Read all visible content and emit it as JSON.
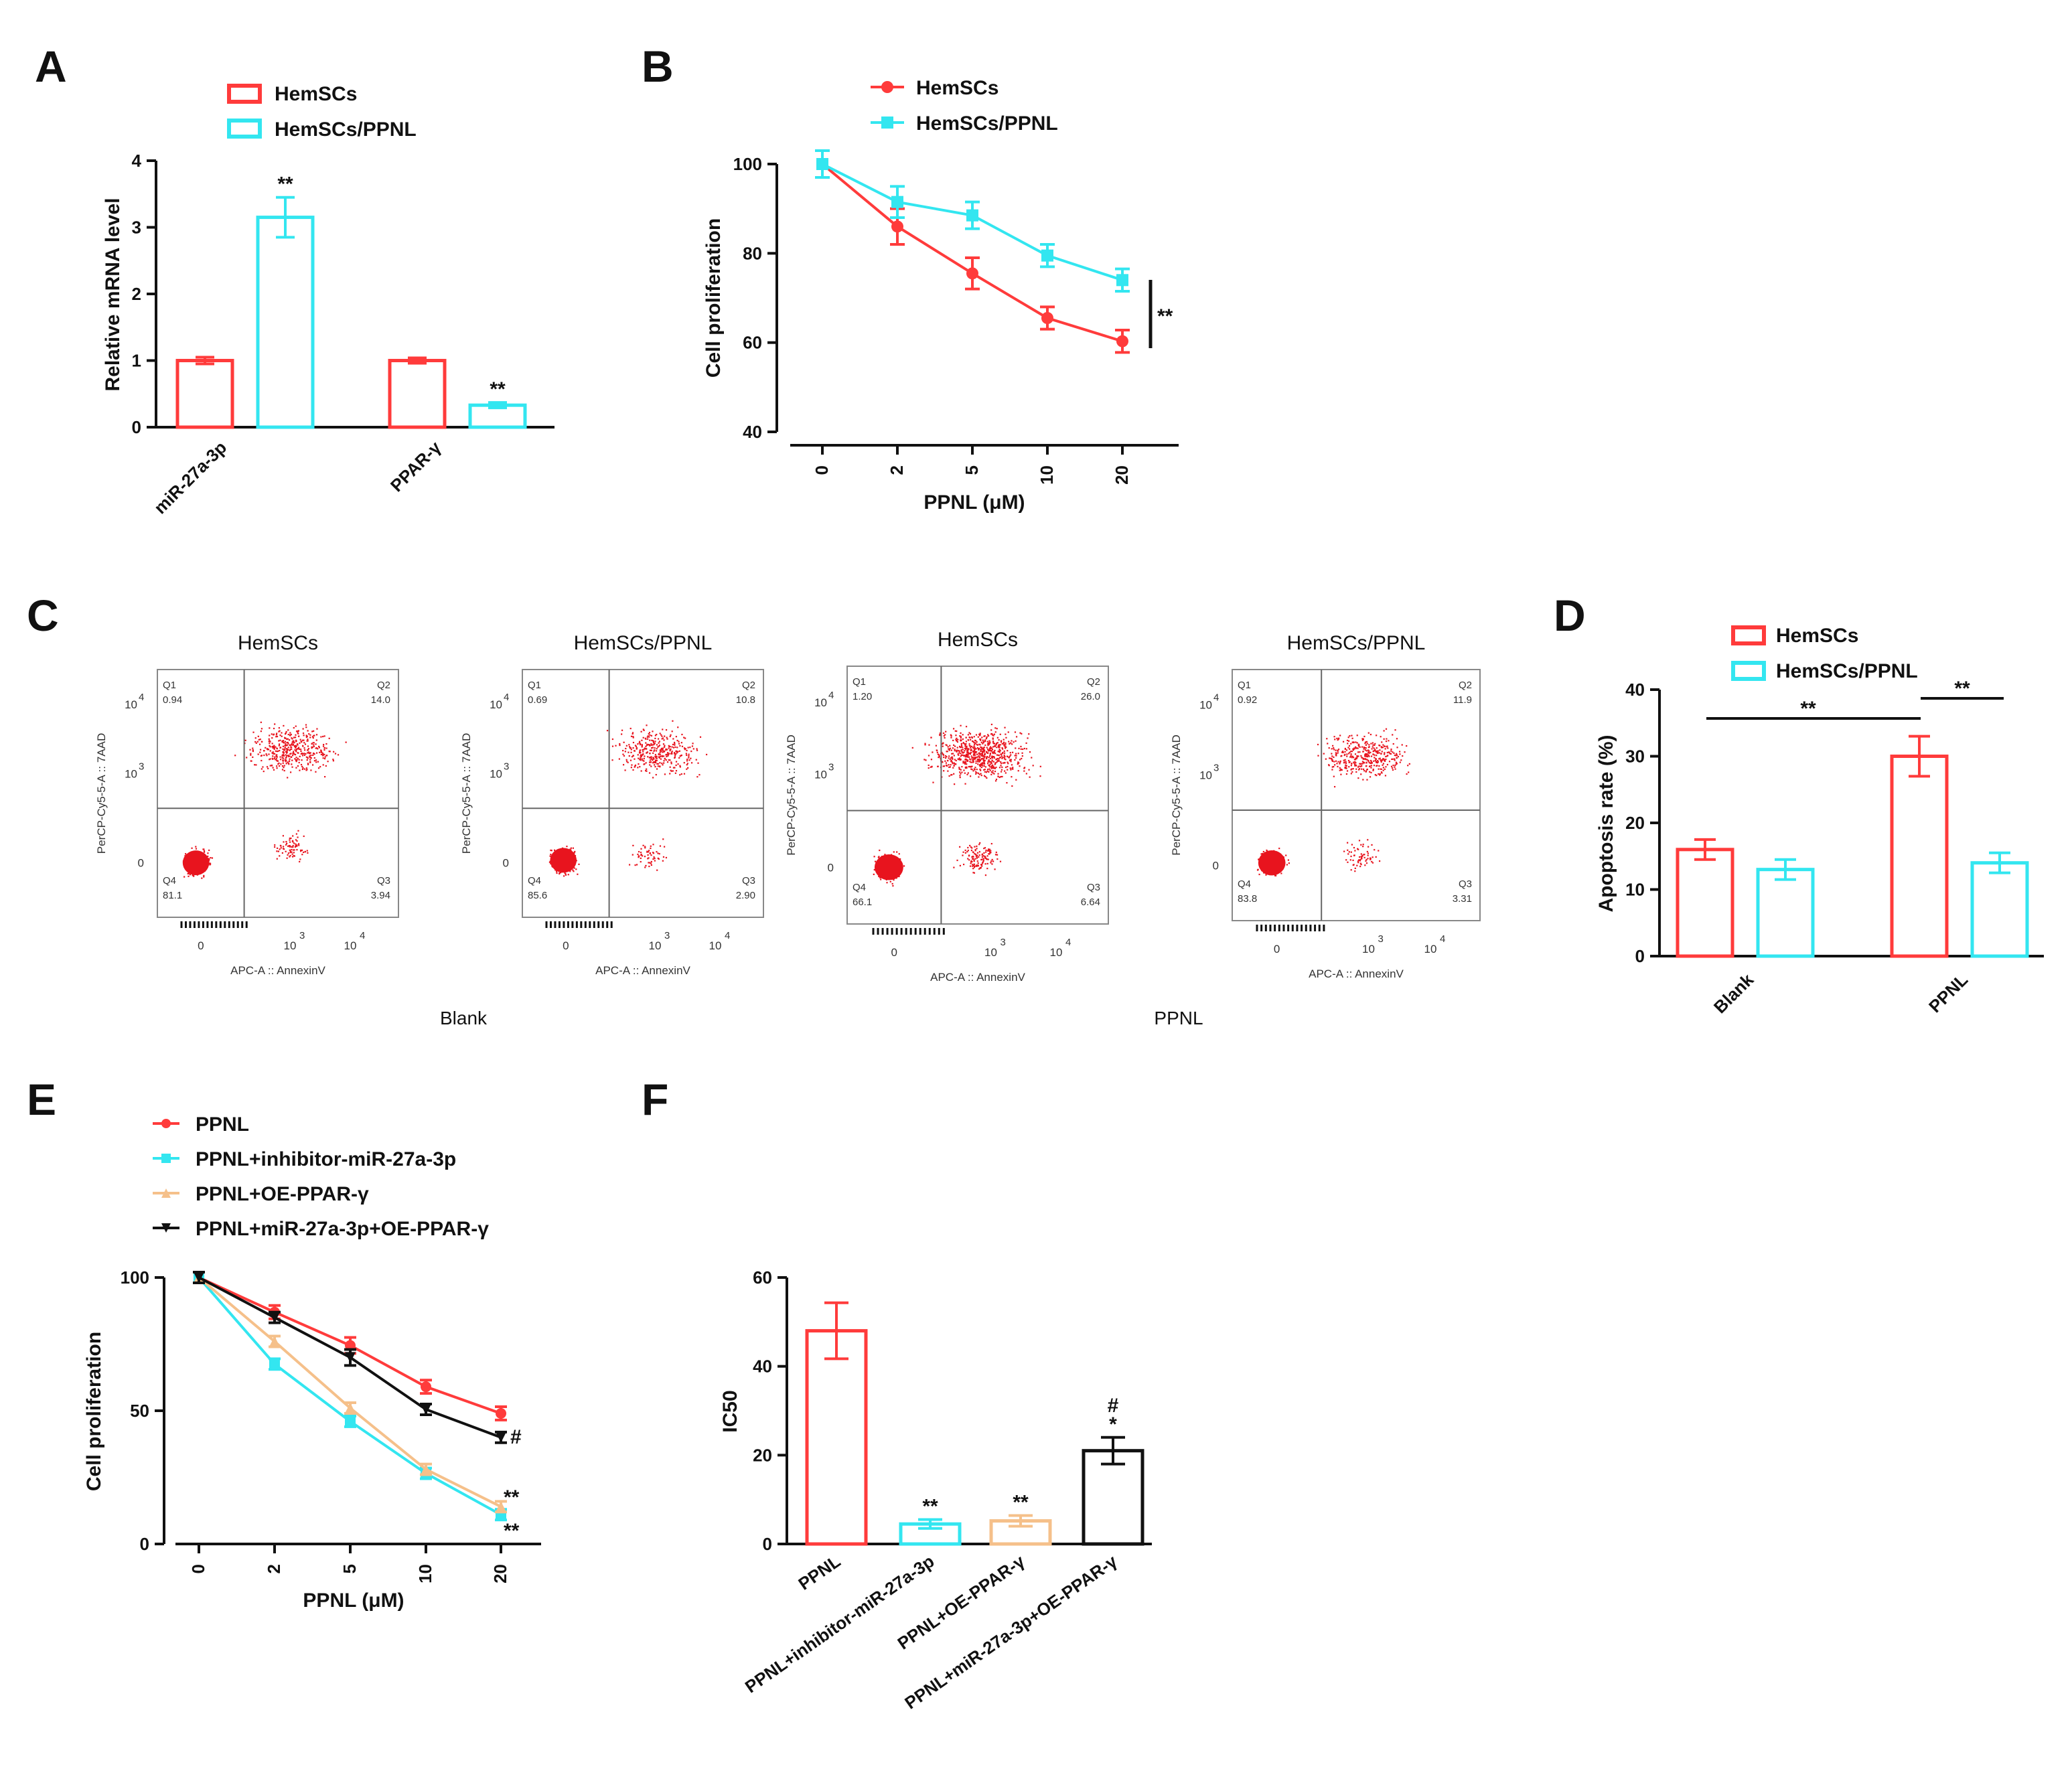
{
  "colors": {
    "red": "#ff3b3b",
    "cyan": "#33e6f0",
    "peach": "#f5c08a",
    "black": "#111111"
  },
  "panelA": {
    "label": "A",
    "chart_data": {
      "type": "bar",
      "categories": [
        "miR-27a-3p",
        "PPAR-γ"
      ],
      "series": [
        {
          "name": "HemSCs",
          "values": [
            1.0,
            1.0
          ],
          "errors": [
            0.05,
            0.04
          ]
        },
        {
          "name": "HemSCs/PPNL",
          "values": [
            3.15,
            0.33
          ],
          "errors": [
            0.3,
            0.04
          ]
        }
      ],
      "annotations": [
        "**",
        "**"
      ],
      "ylabel": "Relative mRNA level",
      "ylim": [
        0,
        4
      ],
      "yticks": [
        "0",
        "1",
        "2",
        "3",
        "4"
      ]
    }
  },
  "panelB": {
    "label": "B",
    "chart_data": {
      "type": "line",
      "x": [
        "0",
        "2",
        "5",
        "10",
        "20"
      ],
      "series": [
        {
          "name": "HemSCs",
          "values": [
            100,
            86,
            75.5,
            65.5,
            60.3
          ],
          "errors": [
            3,
            4,
            3.5,
            2.5,
            2.5
          ]
        },
        {
          "name": "HemSCs/PPNL",
          "values": [
            100,
            91.5,
            88.5,
            79.5,
            74
          ],
          "errors": [
            3,
            3.5,
            3,
            2.5,
            2.5
          ]
        }
      ],
      "significance": "**",
      "xlabel": "PPNL (μM)",
      "ylabel": "Cell proliferation",
      "ylim": [
        40,
        100
      ],
      "yticks": [
        "40",
        "60",
        "80",
        "100"
      ]
    }
  },
  "panelC": {
    "label": "C",
    "group_labels": [
      "Blank",
      "PPNL"
    ],
    "plots": [
      {
        "title": "HemSCs",
        "q1": "0.94",
        "q2": "14.0",
        "q3": "3.94",
        "q4": "81.1"
      },
      {
        "title": "HemSCs/PPNL",
        "q1": "0.69",
        "q2": "10.8",
        "q3": "2.90",
        "q4": "85.6"
      },
      {
        "title": "HemSCs",
        "q1": "1.20",
        "q2": "26.0",
        "q3": "6.64",
        "q4": "66.1"
      },
      {
        "title": "HemSCs/PPNL",
        "q1": "0.92",
        "q2": "11.9",
        "q3": "3.31",
        "q4": "83.8"
      }
    ],
    "quadrant_names": [
      "Q1",
      "Q2",
      "Q3",
      "Q4"
    ],
    "xlabel": "APC-A :: AnnexinV",
    "ylabel": "PerCP-Cy5-5-A :: 7AAD",
    "ticks": [
      "0",
      "10",
      "3",
      "4"
    ]
  },
  "panelD": {
    "label": "D",
    "chart_data": {
      "type": "bar",
      "categories": [
        "Blank",
        "PPNL"
      ],
      "series": [
        {
          "name": "HemSCs",
          "values": [
            16,
            30
          ],
          "errors": [
            1.5,
            3
          ]
        },
        {
          "name": "HemSCs/PPNL",
          "values": [
            13,
            14
          ],
          "errors": [
            1.5,
            1.5
          ]
        }
      ],
      "annotations": [
        "**",
        "**"
      ],
      "ylabel": "Apoptosis rate (%)",
      "ylim": [
        0,
        40
      ],
      "yticks": [
        "0",
        "10",
        "20",
        "30",
        "40"
      ]
    }
  },
  "panelE": {
    "label": "E",
    "chart_data": {
      "type": "line",
      "x": [
        "0",
        "2",
        "5",
        "10",
        "20"
      ],
      "series": [
        {
          "name": "PPNL",
          "values": [
            100,
            87,
            74.5,
            59,
            49
          ],
          "errors": [
            2,
            2.5,
            3,
            2.5,
            2.5
          ]
        },
        {
          "name": "PPNL+inhibitor-miR-27a-3p",
          "values": [
            100,
            67.5,
            46,
            26.5,
            11
          ],
          "errors": [
            2,
            2,
            2,
            2,
            2
          ]
        },
        {
          "name": "PPNL+OE-PPAR-γ",
          "values": [
            100,
            76,
            51,
            28,
            14
          ],
          "errors": [
            2,
            2,
            2,
            2,
            2
          ]
        },
        {
          "name": "PPNL+miR-27a-3p+OE-PPAR-γ",
          "values": [
            100,
            85,
            70,
            50.5,
            40
          ],
          "errors": [
            2,
            2,
            3,
            2,
            2
          ]
        }
      ],
      "annotations": [
        "#",
        "**",
        "**"
      ],
      "xlabel": "PPNL (μM)",
      "ylabel": "Cell proliferation",
      "ylim": [
        0,
        100
      ],
      "yticks": [
        "0",
        "50",
        "100"
      ]
    }
  },
  "panelF": {
    "label": "F",
    "chart_data": {
      "type": "bar",
      "categories": [
        "PPNL",
        "PPNL+inhibitor-miR-27a-3p",
        "PPNL+OE-PPAR-γ",
        "PPNL+miR-27a-3p+OE-PPAR-γ"
      ],
      "values": [
        48,
        4.5,
        5.2,
        21
      ],
      "errors": [
        6.3,
        1,
        1.2,
        3
      ],
      "annotations": [
        "",
        "**",
        "**",
        "*"
      ],
      "annotation2": [
        "",
        "",
        "",
        "#"
      ],
      "ylabel": "IC50",
      "ylim": [
        0,
        60
      ],
      "yticks": [
        "0",
        "20",
        "40",
        "60"
      ]
    }
  }
}
